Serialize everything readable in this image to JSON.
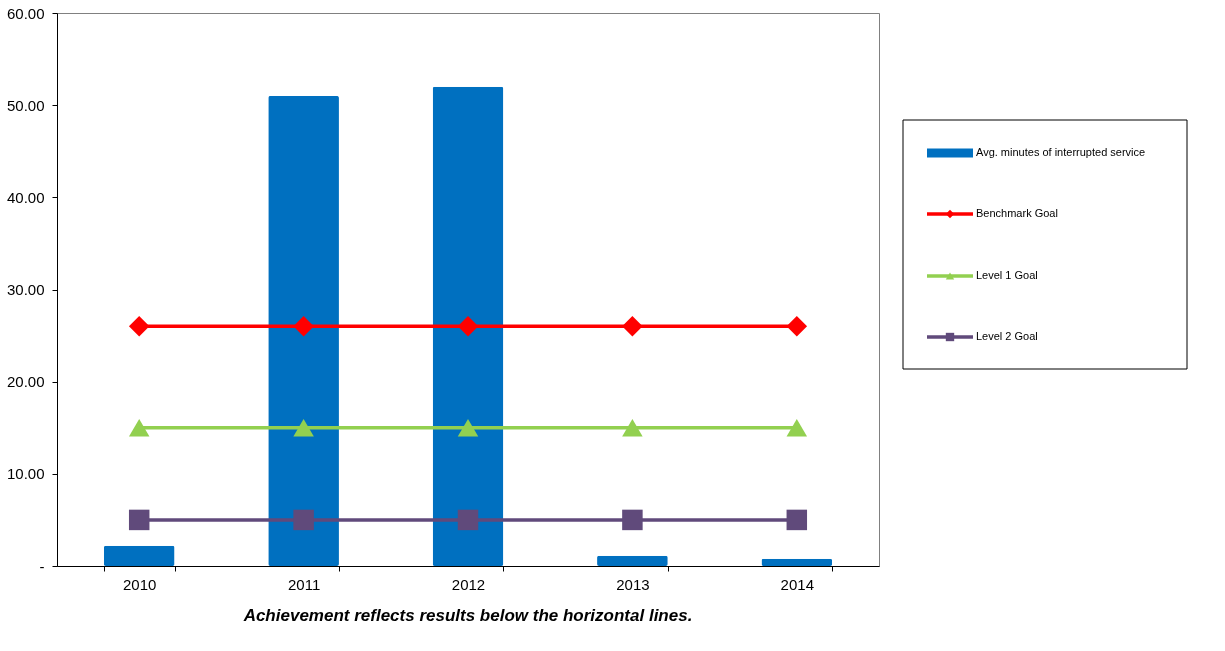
{
  "chart_data": {
    "type": "bar",
    "categories": [
      "2010",
      "2011",
      "2012",
      "2013",
      "2014"
    ],
    "series": [
      {
        "name": "Avg. minutes of interrupted service",
        "type": "bar",
        "color": "#0070c0",
        "values": [
          2.2,
          51,
          52,
          1.1,
          0.8
        ]
      },
      {
        "name": "Benchmark Goal",
        "type": "line",
        "color": "#ff0000",
        "marker": "diamond",
        "values": [
          26,
          26,
          26,
          26,
          26
        ]
      },
      {
        "name": "Level 1 Goal",
        "type": "line",
        "color": "#92d050",
        "marker": "triangle",
        "values": [
          15,
          15,
          15,
          15,
          15
        ]
      },
      {
        "name": "Level 2 Goal",
        "type": "line",
        "color": "#604a7b",
        "marker": "square",
        "values": [
          5,
          5,
          5,
          5,
          5
        ]
      }
    ],
    "ylim": [
      0,
      60
    ],
    "yticks": [
      {
        "value": 0,
        "label": "-"
      },
      {
        "value": 10,
        "label": "10.00"
      },
      {
        "value": 20,
        "label": "20.00"
      },
      {
        "value": 30,
        "label": "30.00"
      },
      {
        "value": 40,
        "label": "40.00"
      },
      {
        "value": 50,
        "label": "50.00"
      },
      {
        "value": 60,
        "label": "60.00"
      }
    ],
    "grid": false,
    "legend": "right",
    "annotations": [
      "Achievement reflects results below the horizontal lines."
    ]
  }
}
